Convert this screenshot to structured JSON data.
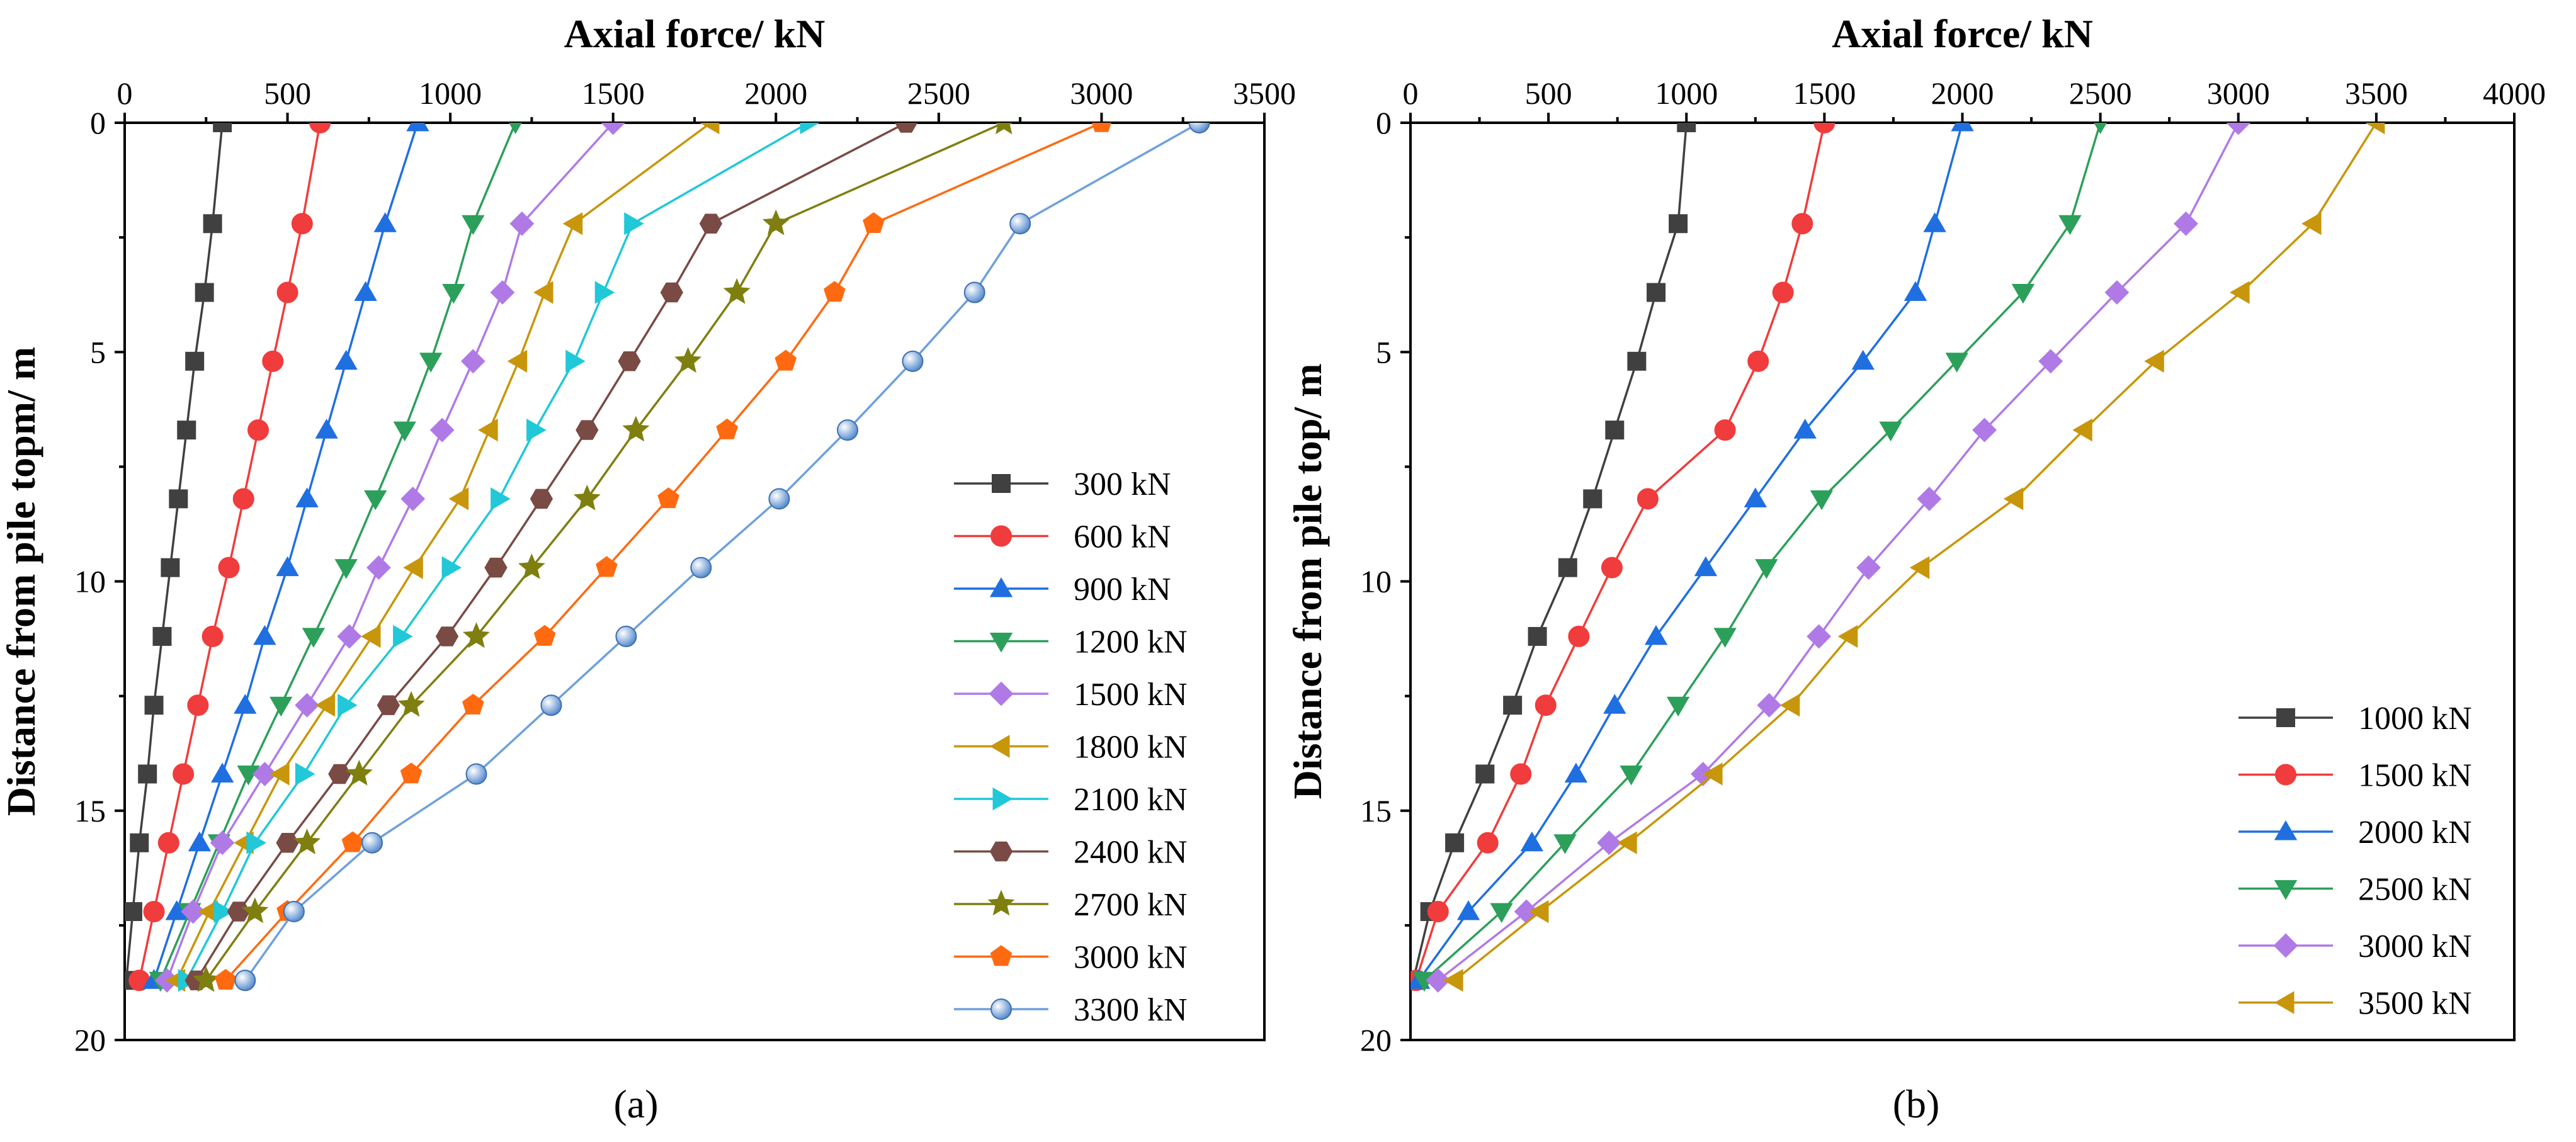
{
  "colors": [
    "#404040",
    "#f03c3c",
    "#1f6fe0",
    "#2ca05a",
    "#b07ae6",
    "#c8960a",
    "#20c8d8",
    "#7a4a44",
    "#7f7f10",
    "#ff6a10",
    "#6ea0dc"
  ],
  "chart_data": [
    {
      "type": "line",
      "panel_label": "(a)",
      "xlabel": "Axial force/ kN",
      "ylabel": "Distance from pile topm/ m",
      "xlim": [
        0,
        3500
      ],
      "ylim": [
        0,
        20
      ],
      "y_inverted": true,
      "x_axis_position": "top",
      "x_ticks": [
        0,
        500,
        1000,
        1500,
        2000,
        2500,
        3000,
        3500
      ],
      "y_ticks": [
        0,
        5,
        10,
        15,
        20
      ],
      "legend_position": "right",
      "depths": [
        0,
        2.2,
        3.7,
        5.2,
        6.7,
        8.2,
        9.7,
        11.2,
        12.7,
        14.2,
        15.7,
        17.2,
        18.7
      ],
      "series": [
        {
          "name": "300 kN",
          "marker": "square",
          "values": [
            300,
            270,
            245,
            215,
            190,
            165,
            140,
            115,
            90,
            70,
            45,
            25,
            5
          ]
        },
        {
          "name": "600 kN",
          "marker": "circle",
          "values": [
            600,
            545,
            500,
            455,
            410,
            365,
            320,
            270,
            225,
            180,
            135,
            90,
            45
          ]
        },
        {
          "name": "900 kN",
          "marker": "triangle-up",
          "values": [
            900,
            800,
            740,
            680,
            620,
            560,
            500,
            430,
            370,
            300,
            230,
            160,
            90
          ]
        },
        {
          "name": "1200 kN",
          "marker": "triangle-down",
          "values": [
            1200,
            1070,
            1010,
            940,
            860,
            770,
            680,
            580,
            480,
            380,
            290,
            200,
            110
          ]
        },
        {
          "name": "1500 kN",
          "marker": "diamond",
          "values": [
            1500,
            1220,
            1160,
            1070,
            975,
            885,
            780,
            690,
            560,
            430,
            300,
            210,
            130
          ]
        },
        {
          "name": "1800 kN",
          "marker": "triangle-left",
          "values": [
            1800,
            1380,
            1290,
            1210,
            1120,
            1030,
            890,
            760,
            620,
            480,
            370,
            260,
            160
          ]
        },
        {
          "name": "2100 kN",
          "marker": "triangle-right",
          "values": [
            2100,
            1560,
            1470,
            1380,
            1260,
            1150,
            1000,
            850,
            680,
            550,
            400,
            300,
            190
          ]
        },
        {
          "name": "2400 kN",
          "marker": "hexagon",
          "values": [
            2400,
            1800,
            1680,
            1550,
            1420,
            1280,
            1140,
            990,
            810,
            660,
            500,
            350,
            220
          ]
        },
        {
          "name": "2700 kN",
          "marker": "star",
          "values": [
            2700,
            2000,
            1880,
            1730,
            1570,
            1420,
            1250,
            1080,
            880,
            720,
            560,
            400,
            250
          ]
        },
        {
          "name": "3000 kN",
          "marker": "pentagon",
          "values": [
            3000,
            2300,
            2180,
            2030,
            1850,
            1670,
            1480,
            1290,
            1070,
            880,
            700,
            500,
            310
          ]
        },
        {
          "name": "3300 kN",
          "marker": "sphere",
          "values": [
            3300,
            2750,
            2610,
            2420,
            2220,
            2010,
            1770,
            1540,
            1310,
            1080,
            760,
            520,
            370
          ]
        }
      ]
    },
    {
      "type": "line",
      "panel_label": "(b)",
      "xlabel": "Axial force/ kN",
      "ylabel": "Distance from pile top/ m",
      "xlim": [
        0,
        4000
      ],
      "ylim": [
        0,
        20
      ],
      "y_inverted": true,
      "x_axis_position": "top",
      "x_ticks": [
        0,
        500,
        1000,
        1500,
        2000,
        2500,
        3000,
        3500,
        4000
      ],
      "y_ticks": [
        0,
        5,
        10,
        15,
        20
      ],
      "legend_position": "bottom-right",
      "depths": [
        0,
        2.2,
        3.7,
        5.2,
        6.7,
        8.2,
        9.7,
        11.2,
        12.7,
        14.2,
        15.7,
        17.2,
        18.7
      ],
      "series": [
        {
          "name": "1000 kN",
          "marker": "square",
          "values": [
            1000,
            970,
            890,
            820,
            740,
            660,
            570,
            460,
            370,
            270,
            160,
            70,
            10
          ]
        },
        {
          "name": "1500 kN",
          "marker": "circle",
          "values": [
            1500,
            1420,
            1350,
            1260,
            1140,
            860,
            730,
            610,
            490,
            400,
            280,
            100,
            20
          ]
        },
        {
          "name": "2000 kN",
          "marker": "triangle-up",
          "values": [
            2000,
            1900,
            1830,
            1640,
            1430,
            1250,
            1070,
            890,
            740,
            600,
            440,
            210,
            30
          ]
        },
        {
          "name": "2500 kN",
          "marker": "triangle-down",
          "values": [
            2500,
            2390,
            2220,
            1980,
            1740,
            1490,
            1290,
            1140,
            970,
            800,
            560,
            330,
            50
          ]
        },
        {
          "name": "3000 kN",
          "marker": "diamond",
          "values": [
            3000,
            2810,
            2560,
            2320,
            2080,
            1880,
            1660,
            1480,
            1300,
            1060,
            720,
            420,
            100
          ]
        },
        {
          "name": "3500 kN",
          "marker": "triangle-left",
          "values": [
            3500,
            3270,
            3010,
            2700,
            2440,
            2190,
            1850,
            1590,
            1380,
            1100,
            790,
            470,
            160
          ]
        }
      ]
    }
  ]
}
